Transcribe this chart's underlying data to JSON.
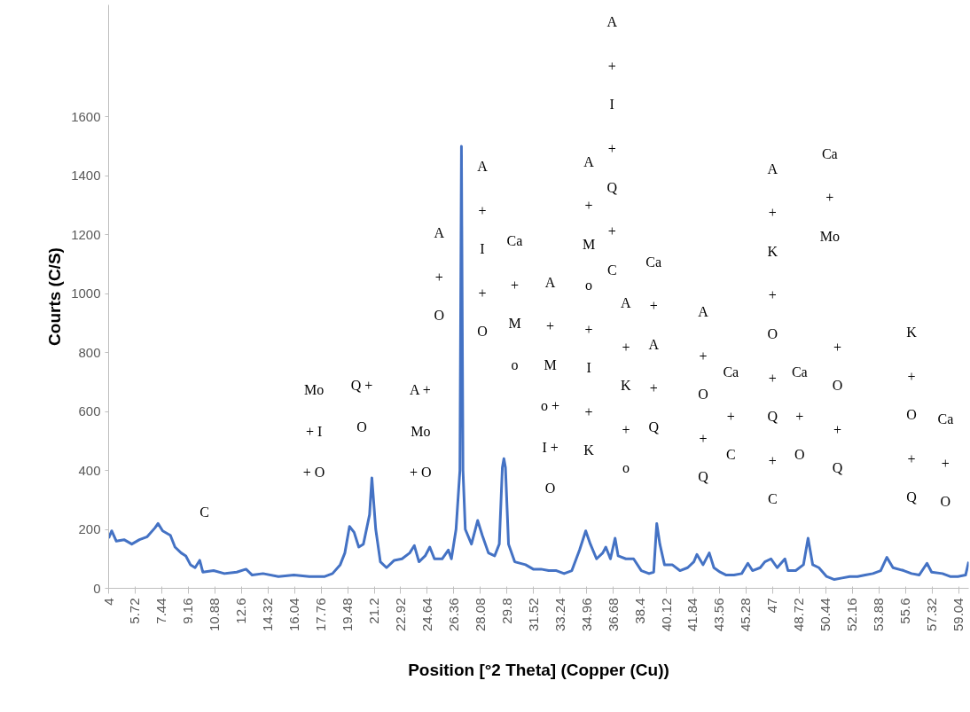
{
  "chart_data": {
    "type": "line",
    "xlabel": "Position [°2 Theta] (Copper (Cu))",
    "ylabel": "Courts (C/S)",
    "x": [
      4,
      4.2,
      4.5,
      5,
      5.5,
      6,
      6.5,
      7,
      7.2,
      7.5,
      8,
      8.3,
      8.7,
      9.0,
      9.3,
      9.6,
      9.9,
      10.1,
      10.8,
      11.5,
      12.3,
      12.9,
      13.3,
      14,
      15,
      16,
      17,
      18,
      18.5,
      19,
      19.3,
      19.6,
      19.9,
      20.2,
      20.5,
      20.9,
      21.05,
      21.3,
      21.6,
      22,
      22.5,
      23,
      23.5,
      23.8,
      24.1,
      24.5,
      24.8,
      25.1,
      25.6,
      26,
      26.2,
      26.5,
      26.75,
      26.85,
      26.95,
      27.1,
      27.5,
      27.9,
      28.2,
      28.6,
      29.0,
      29.3,
      29.5,
      29.6,
      29.7,
      29.9,
      30.3,
      31,
      31.5,
      32,
      32.5,
      33,
      33.5,
      34,
      34.5,
      34.9,
      35.2,
      35.6,
      36,
      36.2,
      36.5,
      36.8,
      37.0,
      37.5,
      38,
      38.5,
      39,
      39.3,
      39.5,
      39.7,
      40,
      40.5,
      41,
      41.5,
      41.9,
      42.1,
      42.5,
      42.9,
      43.2,
      43.6,
      44,
      44.5,
      45,
      45.4,
      45.7,
      46.2,
      46.5,
      46.9,
      47.3,
      47.8,
      48.0,
      48.5,
      49,
      49.3,
      49.6,
      50,
      50.5,
      51,
      51.5,
      52,
      52.5,
      53,
      53.5,
      54,
      54.4,
      54.8,
      55.5,
      56,
      56.5,
      57,
      57.3,
      58,
      58.5,
      59,
      59.5,
      59.7
    ],
    "series": [
      {
        "color": "#4472c4",
        "values": [
          170,
          195,
          160,
          165,
          150,
          165,
          175,
          205,
          220,
          195,
          180,
          140,
          120,
          110,
          80,
          70,
          95,
          55,
          60,
          50,
          55,
          65,
          45,
          50,
          40,
          45,
          40,
          40,
          50,
          80,
          120,
          210,
          190,
          140,
          150,
          250,
          375,
          200,
          90,
          70,
          95,
          100,
          120,
          145,
          90,
          110,
          140,
          100,
          100,
          130,
          100,
          200,
          400,
          1500,
          400,
          200,
          150,
          230,
          180,
          120,
          110,
          150,
          410,
          440,
          410,
          150,
          90,
          80,
          65,
          65,
          60,
          60,
          50,
          60,
          130,
          195,
          150,
          100,
          120,
          140,
          100,
          170,
          110,
          100,
          100,
          60,
          50,
          55,
          220,
          150,
          80,
          80,
          60,
          70,
          90,
          115,
          80,
          120,
          70,
          55,
          45,
          45,
          50,
          85,
          60,
          70,
          90,
          100,
          70,
          100,
          60,
          60,
          80,
          170,
          80,
          70,
          40,
          30,
          35,
          40,
          40,
          45,
          50,
          60,
          105,
          70,
          60,
          50,
          45,
          85,
          55,
          50,
          40,
          40,
          45,
          90
        ]
      }
    ],
    "xlim": [
      4,
      59.7
    ],
    "ylim": [
      0,
      1980
    ],
    "xticks": [
      4,
      {
        "value": 5.72,
        "label": "5.72"
      },
      {
        "value": 7.44,
        "label": "7.44"
      },
      {
        "value": 9.16,
        "label": "9.16"
      },
      {
        "value": 10.88,
        "label": "10.88"
      },
      {
        "value": 12.6,
        "label": "12.6"
      },
      {
        "value": 14.32,
        "label": "14.32"
      },
      {
        "value": 16.04,
        "label": "16.04"
      },
      {
        "value": 17.76,
        "label": "17.76"
      },
      {
        "value": 19.48,
        "label": "19.48"
      },
      {
        "value": 21.2,
        "label": "21.2"
      },
      {
        "value": 22.92,
        "label": "22.92"
      },
      {
        "value": 24.64,
        "label": "24.64"
      },
      {
        "value": 26.36,
        "label": "26.36"
      },
      {
        "value": 28.08,
        "label": "28.08"
      },
      {
        "value": 29.8,
        "label": "29.8"
      },
      {
        "value": 31.52,
        "label": "31.52"
      },
      {
        "value": 33.24,
        "label": "33.24"
      },
      {
        "value": 34.96,
        "label": "34.96"
      },
      {
        "value": 36.68,
        "label": "36.68"
      },
      {
        "value": 38.4,
        "label": "38.4"
      },
      {
        "value": 40.12,
        "label": "40.12"
      },
      {
        "value": 41.84,
        "label": "41.84"
      },
      {
        "value": 43.56,
        "label": "43.56"
      },
      {
        "value": 45.28,
        "label": "45.28"
      },
      47,
      {
        "value": 48.72,
        "label": "48.72"
      },
      {
        "value": 50.44,
        "label": "50.44"
      },
      {
        "value": 52.16,
        "label": "52.16"
      },
      {
        "value": 53.88,
        "label": "53.88"
      },
      {
        "value": 55.6,
        "label": "55.6"
      },
      {
        "value": 57.32,
        "label": "57.32"
      },
      {
        "value": 59.04,
        "label": "59.04"
      }
    ],
    "yticks": [
      0,
      200,
      400,
      600,
      800,
      1000,
      1200,
      1400,
      1600
    ],
    "grid": false,
    "marker": "none",
    "line_style": "solid",
    "annotations": [
      "C",
      "Mo",
      "+ I",
      "+ O",
      "Q +",
      "O",
      "A +",
      "Mo",
      "+ O",
      "A",
      "+",
      "O",
      "A",
      "+",
      "I",
      "+",
      "O",
      "Ca",
      "+",
      "M",
      "o",
      "A",
      "+",
      "M",
      "o +",
      "I +",
      "O",
      "A",
      "+",
      "M",
      "o",
      "+",
      "I",
      "+",
      "K",
      "A",
      "+",
      "I",
      "+",
      "Q",
      "+",
      "C",
      "A",
      "+",
      "K",
      "+",
      "o",
      "Ca",
      "+",
      "A",
      "+",
      "Q",
      "A",
      "+",
      "O",
      "+",
      "Q",
      "Ca",
      "+",
      "C",
      "A",
      "+",
      "K",
      "+",
      "O",
      "+",
      "Q",
      "+",
      "C",
      "Ca",
      "+",
      "O",
      "Ca",
      "+",
      "Mo",
      "+",
      "O",
      "+",
      "Q",
      "K",
      "+",
      "O",
      "+",
      "Q",
      "Ca",
      "+",
      "O"
    ]
  }
}
